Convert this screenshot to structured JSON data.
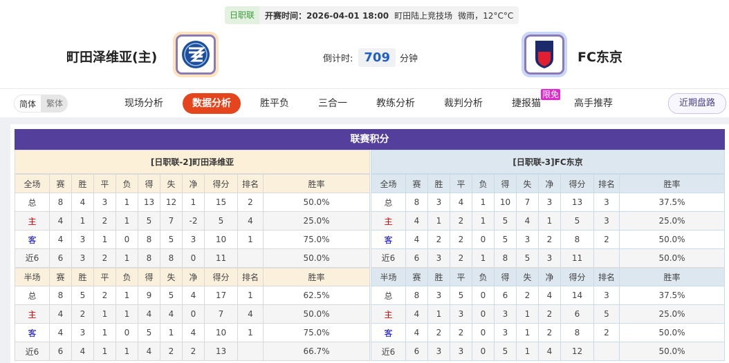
{
  "match": {
    "league": "日职联",
    "time": "开赛时间：2026-04-01 18:00",
    "venue": "町田陆上竞技场",
    "weather": "微雨，12°C°C",
    "home": "町田泽维亚(主)",
    "away": "FC东京",
    "countdown_label": "倒计时:",
    "countdown": "709",
    "countdown_unit": "分钟"
  },
  "nav": {
    "lang": [
      "简体",
      "繁体"
    ],
    "tabs": [
      "现场分析",
      "数据分析",
      "胜平负",
      "三合一",
      "教练分析",
      "裁判分析",
      "捷报猫",
      "高手推荐"
    ],
    "active": "数据分析",
    "badge": "限免",
    "recent": "近期盘路"
  },
  "standings": {
    "title": "联赛积分",
    "cols": [
      "赛",
      "胜",
      "平",
      "负",
      "得",
      "失",
      "净",
      "得分",
      "排名",
      "胜率"
    ],
    "home": {
      "header": "[日职联-2]町田泽维亚",
      "full": {
        "label": "全场",
        "rows": [
          [
            "总",
            "8",
            "4",
            "3",
            "1",
            "13",
            "12",
            "1",
            "15",
            "2",
            "50.0%"
          ],
          [
            "主",
            "4",
            "1",
            "2",
            "1",
            "5",
            "7",
            "-2",
            "5",
            "4",
            "25.0%"
          ],
          [
            "客",
            "4",
            "3",
            "1",
            "0",
            "8",
            "5",
            "3",
            "10",
            "1",
            "75.0%"
          ],
          [
            "近6",
            "6",
            "3",
            "2",
            "1",
            "8",
            "8",
            "0",
            "11",
            "",
            "50.0%"
          ]
        ]
      },
      "half": {
        "label": "半场",
        "rows": [
          [
            "总",
            "8",
            "5",
            "2",
            "1",
            "9",
            "5",
            "4",
            "17",
            "1",
            "62.5%"
          ],
          [
            "主",
            "4",
            "2",
            "1",
            "1",
            "4",
            "4",
            "0",
            "7",
            "4",
            "50.0%"
          ],
          [
            "客",
            "4",
            "3",
            "1",
            "0",
            "5",
            "1",
            "4",
            "10",
            "1",
            "75.0%"
          ],
          [
            "近6",
            "6",
            "4",
            "1",
            "1",
            "4",
            "2",
            "2",
            "13",
            "",
            "66.7%"
          ]
        ]
      }
    },
    "away": {
      "header": "[日职联-3]FC东京",
      "full": {
        "label": "全场",
        "rows": [
          [
            "总",
            "8",
            "3",
            "4",
            "1",
            "10",
            "7",
            "3",
            "13",
            "3",
            "37.5%"
          ],
          [
            "主",
            "4",
            "1",
            "2",
            "1",
            "5",
            "4",
            "1",
            "5",
            "3",
            "25.0%"
          ],
          [
            "客",
            "4",
            "2",
            "2",
            "0",
            "5",
            "3",
            "2",
            "8",
            "2",
            "50.0%"
          ],
          [
            "近6",
            "6",
            "3",
            "2",
            "1",
            "8",
            "5",
            "3",
            "11",
            "",
            "50.0%"
          ]
        ]
      },
      "half": {
        "label": "半场",
        "rows": [
          [
            "总",
            "8",
            "3",
            "5",
            "0",
            "6",
            "2",
            "4",
            "14",
            "3",
            "37.5%"
          ],
          [
            "主",
            "4",
            "1",
            "3",
            "0",
            "3",
            "1",
            "2",
            "6",
            "5",
            "25.0%"
          ],
          [
            "客",
            "4",
            "2",
            "2",
            "0",
            "3",
            "1",
            "2",
            "8",
            "2",
            "50.0%"
          ],
          [
            "近6",
            "6",
            "3",
            "3",
            "0",
            "5",
            "1",
            "4",
            "12",
            "",
            "50.0%"
          ]
        ]
      }
    }
  }
}
